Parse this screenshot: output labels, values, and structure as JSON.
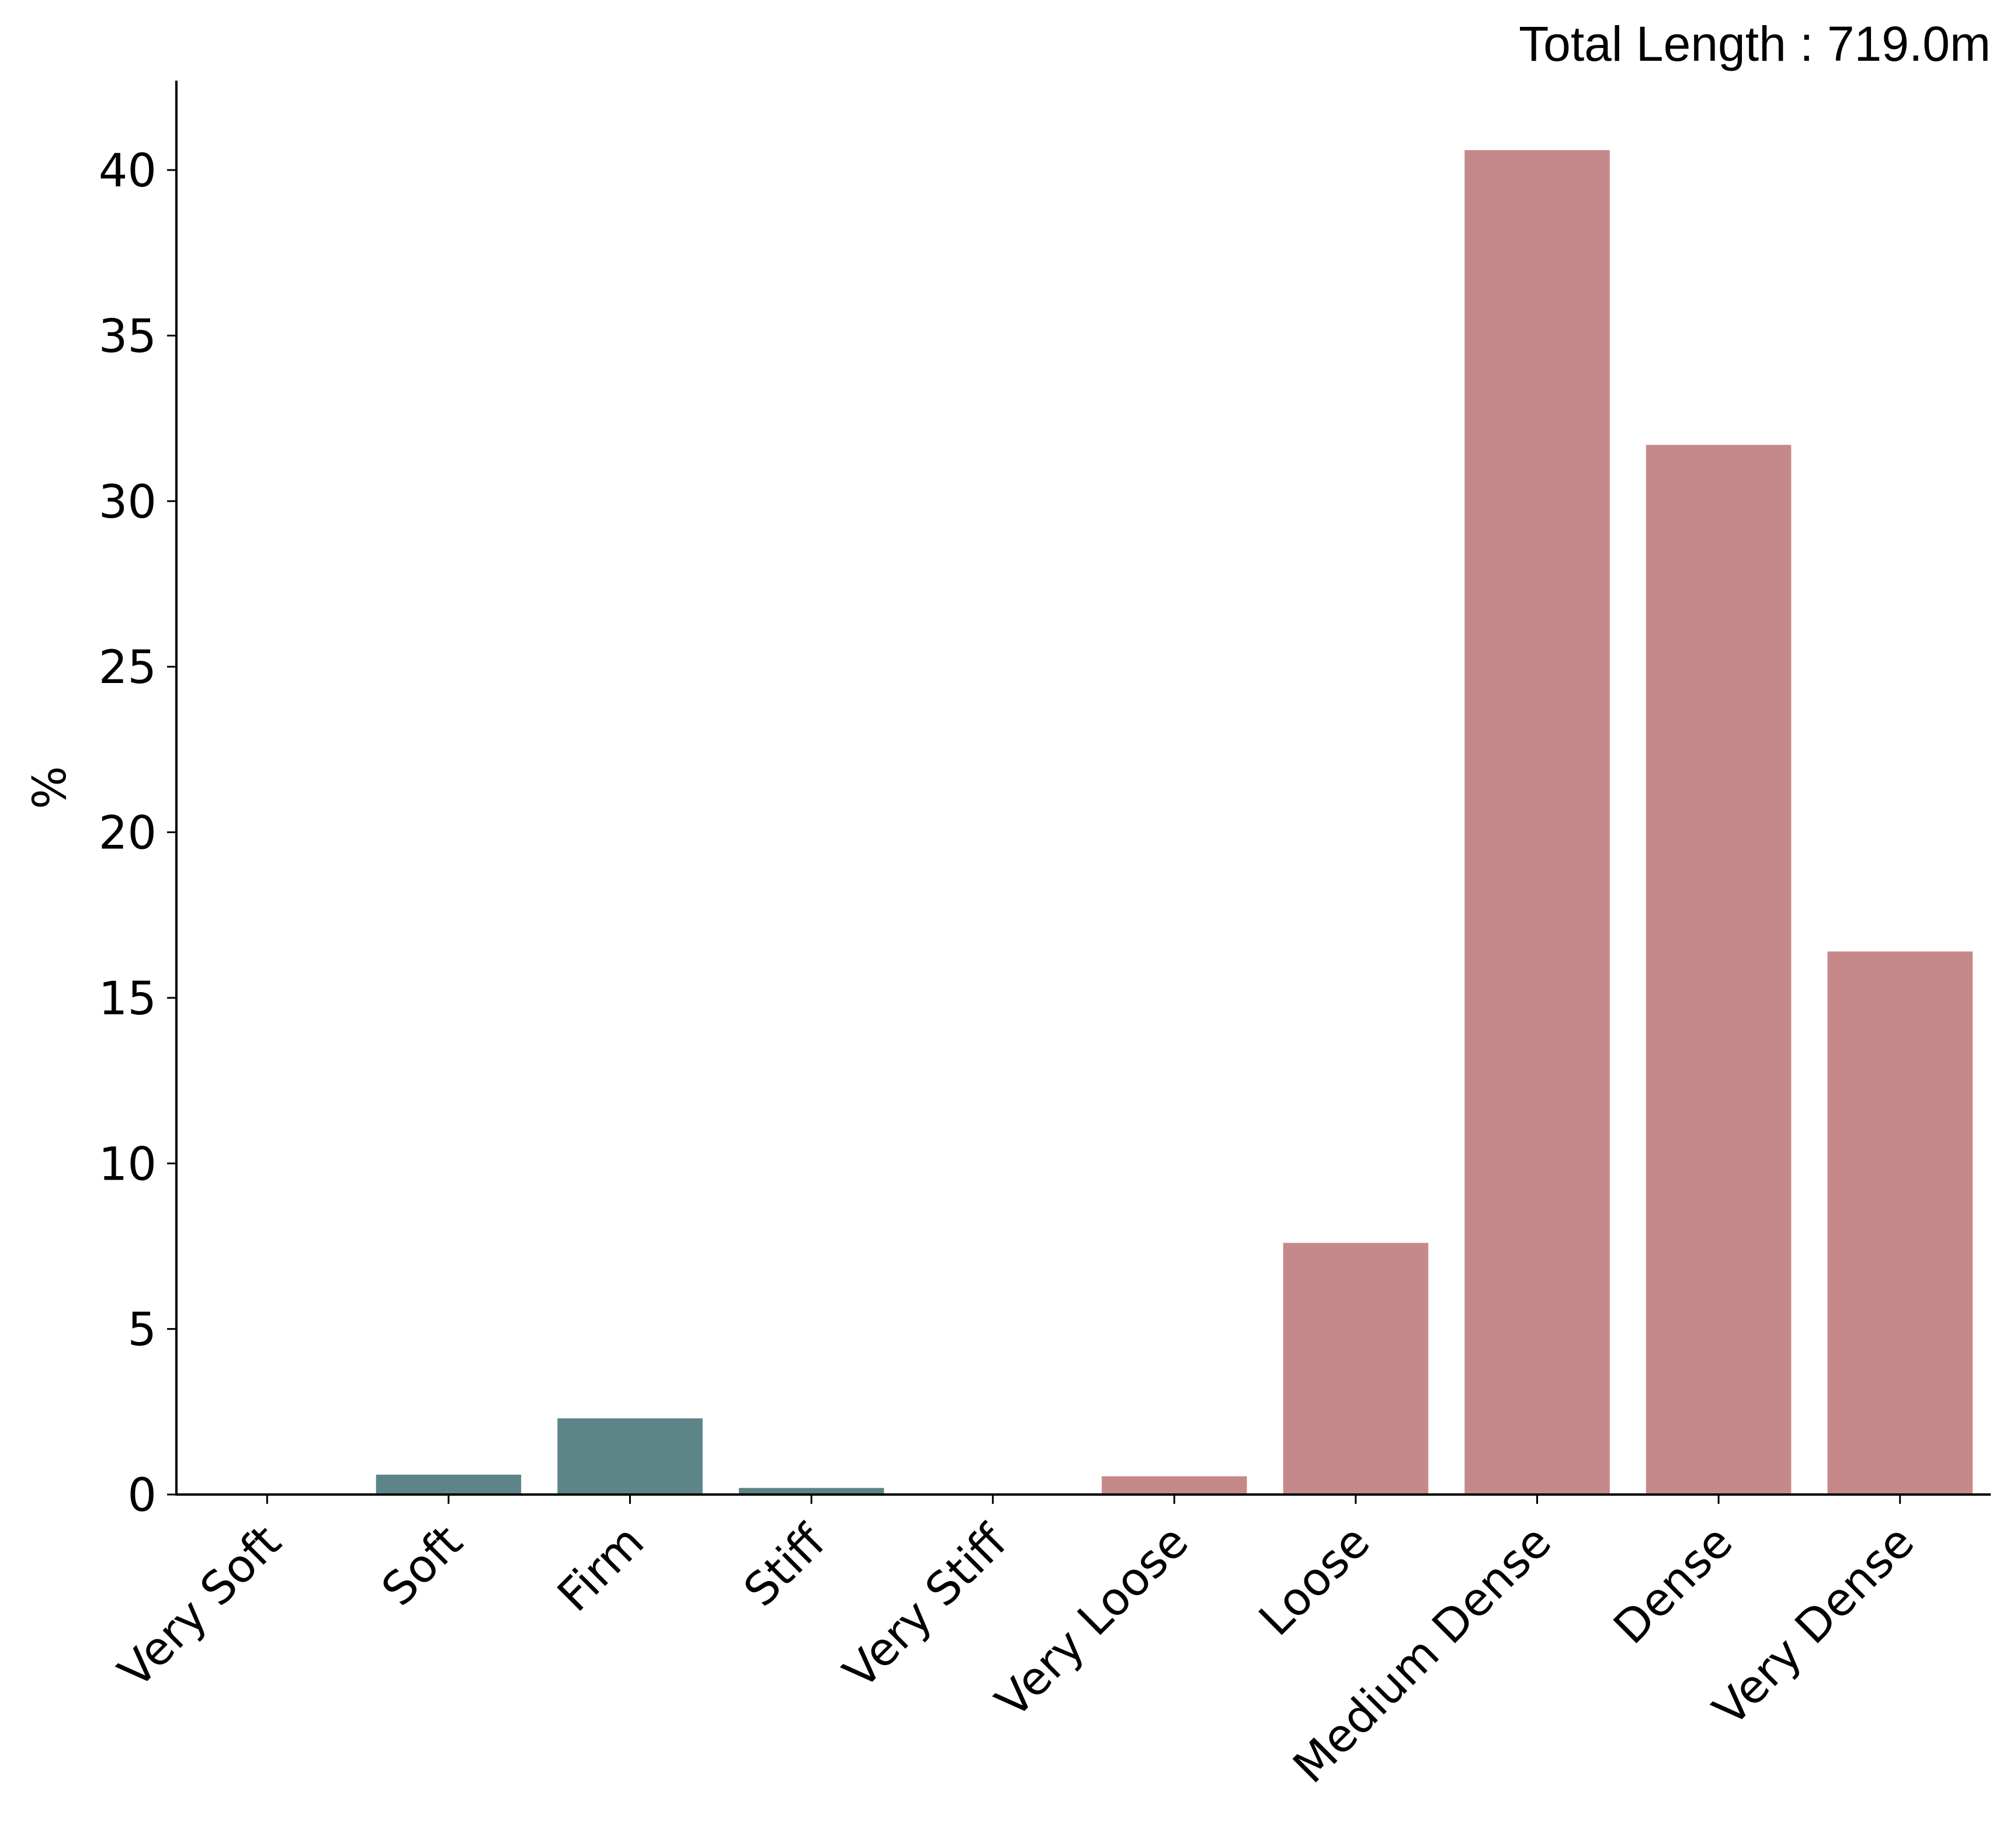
{
  "annotation": "Total Length : 719.0m",
  "chart_data": {
    "type": "bar",
    "categories": [
      "Very Soft",
      "Soft",
      "Firm",
      "Stiff",
      "Very Stiff",
      "Very Loose",
      "Loose",
      "Medium Dense",
      "Dense",
      "Very Dense"
    ],
    "values": [
      0,
      0.6,
      2.3,
      0.2,
      0,
      0.55,
      7.6,
      40.6,
      31.7,
      16.4
    ],
    "groups": [
      "cohesive",
      "cohesive",
      "cohesive",
      "cohesive",
      "cohesive",
      "granular",
      "granular",
      "granular",
      "granular",
      "granular"
    ],
    "group_colors": {
      "cohesive": "#5d8588",
      "granular": "#c68989"
    },
    "title": "",
    "xlabel": "",
    "ylabel": "%",
    "ylim": [
      0,
      42.7
    ],
    "yticks": [
      0,
      5,
      10,
      15,
      20,
      25,
      30,
      35,
      40
    ],
    "grid": false,
    "legend": "none"
  }
}
